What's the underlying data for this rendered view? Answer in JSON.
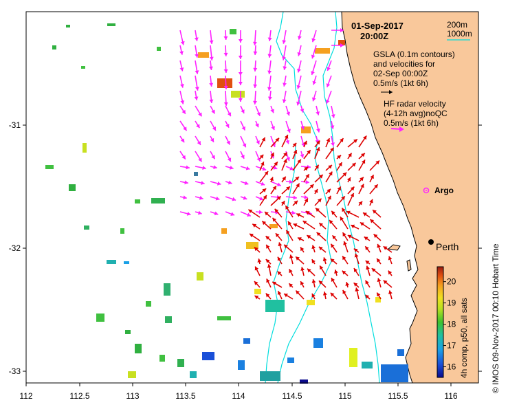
{
  "map": {
    "date": "01-Sep-2017",
    "time": "20:00Z",
    "x_ticks": [
      "112",
      "112.5",
      "113",
      "113.5",
      "114",
      "114.5",
      "115",
      "115.5",
      "116"
    ],
    "y_ticks": [
      "-31",
      "-32",
      "-33"
    ],
    "lon_range": [
      112,
      116.3
    ],
    "lat_range": [
      -33.1,
      -30.1
    ]
  },
  "legend": {
    "contour_200": "200m",
    "contour_1000": "1000m",
    "gsla_line1": "GSLA (0.1m contours)",
    "gsla_line2": "and velocities for",
    "gsla_line3": "02-Sep 00:00Z",
    "gsla_scale": "0.5m/s (1kt 6h)",
    "hf_line1": "HF radar velocity",
    "hf_line2": "(4-12h avg)noQC",
    "hf_scale": "0.5m/s (1kt 6h)"
  },
  "places": {
    "argo": "Argo",
    "perth": "Perth"
  },
  "colorbar": {
    "ticks": [
      "20",
      "19",
      "18",
      "17",
      "16"
    ],
    "label": "4h comp, p50, all sats",
    "range": [
      15.5,
      20.7
    ]
  },
  "credit": "© IMOS 09-Nov-2017 00:10 Hobart Time",
  "colors": {
    "land": "#f9c89b",
    "hf_arrows": "#dd0000",
    "gsla_arrows": "#ff22ff",
    "contour": "#00dddd"
  }
}
